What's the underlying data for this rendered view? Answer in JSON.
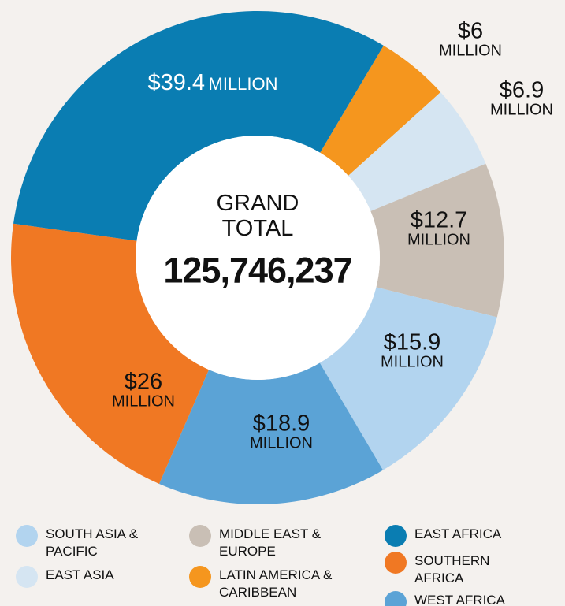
{
  "chart_data": {
    "type": "pie",
    "center_title": "GRAND TOTAL",
    "center_value": "125,746,237",
    "unit": "MILLION",
    "categories": [
      "LATIN AMERICA & CARIBBEAN",
      "EAST ASIA",
      "MIDDLE EAST & EUROPE",
      "SOUTH ASIA & PACIFIC",
      "WEST AFRICA",
      "SOUTHERN AFRICA",
      "EAST AFRICA"
    ],
    "values": [
      6,
      6.9,
      12.7,
      15.9,
      18.9,
      26,
      39.4
    ],
    "value_labels": [
      "$6",
      "$6.9",
      "$12.7",
      "$15.9",
      "$18.9",
      "$26",
      "$39.4"
    ],
    "colors": [
      "#f5961e",
      "#d5e5f2",
      "#c9bfb5",
      "#b2d4ef",
      "#5ba3d6",
      "#f07823",
      "#0a7db2"
    ]
  }
}
